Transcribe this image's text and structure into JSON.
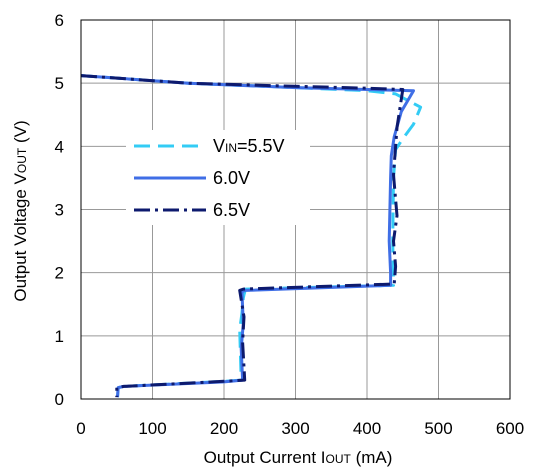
{
  "chart_data": {
    "type": "line",
    "xlabel": {
      "main": "Output Current I",
      "sub": "OUT",
      "unit": " (mA)"
    },
    "ylabel": {
      "main": "Output Voltage V",
      "sub": "OUT",
      "unit": " (V)"
    },
    "xlim": [
      0,
      600
    ],
    "ylim": [
      0,
      6
    ],
    "xticks": [
      "0",
      "100",
      "200",
      "300",
      "400",
      "500",
      "600"
    ],
    "yticks": [
      "0",
      "1",
      "2",
      "3",
      "4",
      "5",
      "6"
    ],
    "grid": true,
    "legend_position": "center-left",
    "legend": [
      {
        "prefix": "V",
        "sub": "IN",
        "suffix": "=5.5V"
      },
      {
        "prefix": "6.0V",
        "sub": "",
        "suffix": ""
      },
      {
        "prefix": "6.5V",
        "sub": "",
        "suffix": ""
      }
    ],
    "series": [
      {
        "color": "#33ccf5",
        "dash": "dashed",
        "x": [
          0,
          150,
          300,
          400,
          440,
          475,
          465,
          450,
          440,
          437,
          436,
          437,
          437,
          230,
          228,
          227,
          225,
          222,
          224,
          200,
          60,
          52,
          51
        ],
        "y": [
          5.12,
          5.0,
          4.93,
          4.88,
          4.83,
          4.62,
          4.35,
          4.12,
          3.95,
          3.5,
          2.5,
          1.82,
          1.8,
          1.74,
          1.65,
          1.6,
          1.35,
          1.1,
          0.3,
          0.28,
          0.2,
          0.18,
          0.03
        ]
      },
      {
        "color": "#3f6ee6",
        "dash": "solid",
        "x": [
          0,
          150,
          300,
          400,
          465,
          448,
          438,
          434,
          433,
          431,
          433,
          433,
          230,
          225,
          227,
          224,
          226,
          200,
          60,
          52,
          51
        ],
        "y": [
          5.12,
          5.0,
          4.93,
          4.9,
          4.88,
          4.55,
          4.15,
          3.85,
          3.5,
          2.5,
          2.0,
          1.8,
          1.72,
          1.7,
          1.2,
          0.8,
          0.3,
          0.27,
          0.2,
          0.18,
          0.03
        ]
      },
      {
        "color": "#0d1a6e",
        "dash": "dashdot",
        "x": [
          0,
          150,
          300,
          400,
          450,
          446,
          442,
          440,
          437,
          442,
          437,
          440,
          438,
          227,
          222,
          228,
          226,
          229,
          200,
          60,
          50,
          50
        ],
        "y": [
          5.12,
          5.0,
          4.95,
          4.92,
          4.9,
          4.6,
          4.3,
          4.0,
          3.55,
          2.9,
          2.5,
          2.1,
          1.82,
          1.74,
          1.72,
          1.3,
          0.9,
          0.3,
          0.28,
          0.2,
          0.18,
          0.03
        ]
      }
    ]
  }
}
